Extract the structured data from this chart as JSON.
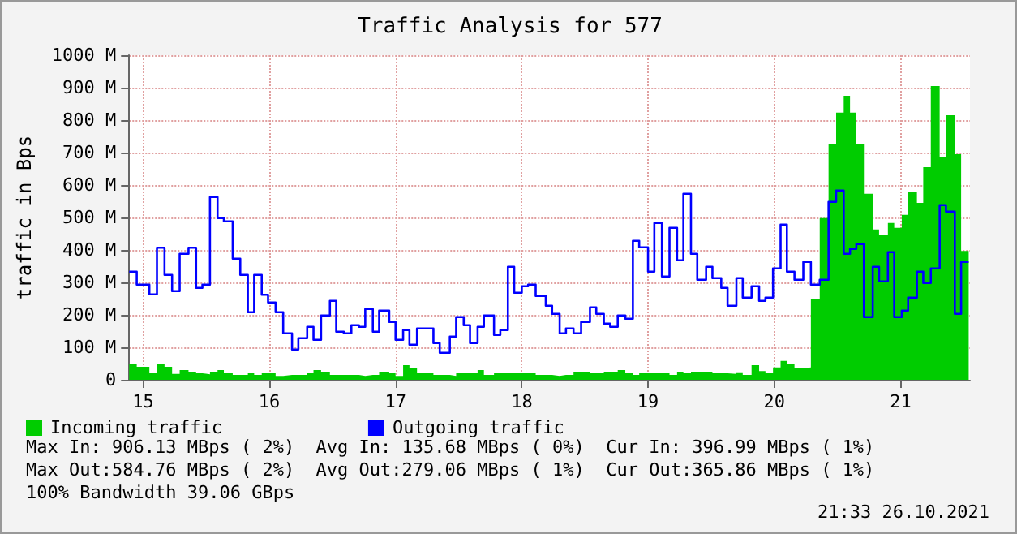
{
  "chart_data": {
    "type": "area",
    "title": "Traffic Analysis for 577",
    "ylabel": "traffic in Bps",
    "x": [
      14.89,
      14.95,
      15.05,
      15.11,
      15.17,
      15.23,
      15.29,
      15.36,
      15.42,
      15.47,
      15.53,
      15.59,
      15.64,
      15.71,
      15.77,
      15.83,
      15.88,
      15.94,
      15.99,
      16.05,
      16.11,
      16.18,
      16.23,
      16.3,
      16.35,
      16.41,
      16.48,
      16.53,
      16.59,
      16.65,
      16.71,
      16.76,
      16.82,
      16.87,
      16.95,
      17.0,
      17.06,
      17.11,
      17.17,
      17.3,
      17.35,
      17.43,
      17.48,
      17.54,
      17.59,
      17.65,
      17.7,
      17.78,
      17.83,
      17.89,
      17.94,
      18.0,
      18.05,
      18.11,
      18.19,
      18.24,
      18.3,
      18.35,
      18.41,
      18.47,
      18.54,
      18.59,
      18.65,
      18.7,
      18.76,
      18.82,
      18.88,
      18.93,
      19.0,
      19.05,
      19.11,
      19.17,
      19.23,
      19.28,
      19.34,
      19.39,
      19.46,
      19.51,
      19.58,
      19.63,
      19.7,
      19.75,
      19.82,
      19.88,
      19.93,
      19.99,
      20.05,
      20.1,
      20.16,
      20.23,
      20.29,
      20.36,
      20.43,
      20.49,
      20.55,
      20.6,
      20.65,
      20.71,
      20.78,
      20.83,
      20.9,
      20.95,
      21.01,
      21.06,
      21.13,
      21.18,
      21.24,
      21.31,
      21.36,
      21.43,
      21.48,
      21.54
    ],
    "series": [
      {
        "name": "Incoming traffic",
        "color": "#00cc00",
        "values": [
          50,
          40,
          20,
          50,
          40,
          18,
          30,
          25,
          20,
          17,
          25,
          30,
          20,
          15,
          15,
          20,
          15,
          20,
          20,
          12,
          15,
          15,
          15,
          20,
          30,
          25,
          15,
          15,
          15,
          15,
          12,
          15,
          15,
          25,
          20,
          12,
          45,
          35,
          20,
          15,
          15,
          12,
          20,
          20,
          20,
          30,
          15,
          20,
          20,
          20,
          20,
          20,
          20,
          15,
          15,
          12,
          15,
          15,
          25,
          25,
          20,
          20,
          25,
          25,
          30,
          20,
          15,
          20,
          20,
          20,
          20,
          15,
          25,
          20,
          25,
          25,
          25,
          20,
          20,
          18,
          23,
          15,
          45,
          27,
          20,
          38,
          58,
          50,
          35,
          38,
          250,
          498,
          725,
          823,
          875,
          823,
          725,
          573,
          463,
          445,
          483,
          468,
          508,
          578,
          545,
          655,
          905,
          685,
          815,
          695,
          397,
          397
        ]
      },
      {
        "name": "Outgoing traffic",
        "type": "step",
        "color": "#0000ff",
        "values": [
          333,
          293,
          263,
          407,
          323,
          273,
          388,
          407,
          283,
          293,
          563,
          498,
          488,
          373,
          323,
          208,
          323,
          262,
          238,
          208,
          143,
          93,
          128,
          163,
          123,
          198,
          243,
          148,
          143,
          168,
          163,
          218,
          148,
          213,
          178,
          123,
          153,
          108,
          158,
          113,
          83,
          133,
          193,
          168,
          113,
          163,
          198,
          138,
          153,
          348,
          268,
          288,
          293,
          258,
          228,
          203,
          143,
          158,
          143,
          178,
          223,
          203,
          173,
          163,
          198,
          188,
          428,
          408,
          333,
          483,
          318,
          468,
          368,
          573,
          388,
          308,
          348,
          313,
          283,
          228,
          313,
          253,
          288,
          243,
          253,
          343,
          478,
          333,
          308,
          363,
          293,
          308,
          548,
          583,
          388,
          403,
          418,
          193,
          348,
          303,
          393,
          193,
          213,
          253,
          333,
          298,
          343,
          538,
          518,
          203,
          363,
          363
        ]
      }
    ],
    "xlim": [
      14.89,
      21.55
    ],
    "xticks": [
      15,
      16,
      17,
      18,
      19,
      20,
      21
    ],
    "ylim": [
      0,
      1000
    ],
    "yticks": [
      0,
      {
        "value": 100,
        "label": "100 M"
      },
      {
        "value": 200,
        "label": "200 M"
      },
      {
        "value": 300,
        "label": "300 M"
      },
      {
        "value": 400,
        "label": "400 M"
      },
      {
        "value": 500,
        "label": "500 M"
      },
      {
        "value": 600,
        "label": "600 M"
      },
      {
        "value": 700,
        "label": "700 M"
      },
      {
        "value": 800,
        "label": "800 M"
      },
      {
        "value": 900,
        "label": "900 M"
      },
      {
        "value": 1000,
        "label": "1000 M"
      }
    ],
    "grid": true,
    "legend": "bottom left",
    "annotations": [
      "Max In: 906.13 MBps ( 2%)  Avg In: 135.68 MBps ( 0%)  Cur In: 396.99 MBps ( 1%)",
      "Max Out:584.76 MBps ( 2%)  Avg Out:279.06 MBps ( 1%)  Cur Out:365.86 MBps ( 1%)",
      "100% Bandwidth 39.06 GBps",
      "21:33 26.10.2021"
    ]
  }
}
